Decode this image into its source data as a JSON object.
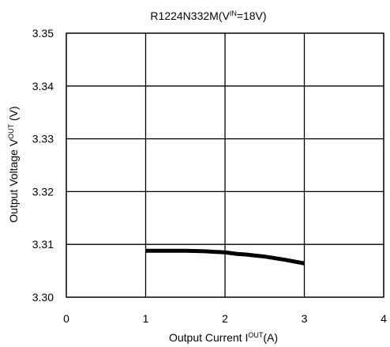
{
  "chart_data": {
    "type": "line",
    "title": {
      "main": "R1224N332M(V",
      "sub": "IN",
      "suffix": "=18V)"
    },
    "xlabel": {
      "main": "Output Current I",
      "sub": "OUT",
      "suffix": "(A)"
    },
    "ylabel": {
      "main": "Output Voltage V",
      "sub": "OUT",
      "suffix": " (V)"
    },
    "xlim": [
      0,
      4
    ],
    "ylim": [
      3.3,
      3.35
    ],
    "x_ticks": [
      0,
      1,
      2,
      3,
      4
    ],
    "y_ticks": [
      3.3,
      3.31,
      3.32,
      3.33,
      3.34,
      3.35
    ],
    "x_tick_labels": [
      "0",
      "1",
      "2",
      "3",
      "4"
    ],
    "y_tick_labels": [
      "3.30",
      "3.31",
      "3.32",
      "3.33",
      "3.34",
      "3.35"
    ],
    "grid": true,
    "series": [
      {
        "x": [
          1.0,
          1.25,
          1.5,
          1.75,
          1.85,
          2.0,
          2.15,
          2.25,
          2.5,
          2.75,
          3.0
        ],
        "y": [
          3.3088,
          3.3088,
          3.3088,
          3.3087,
          3.3086,
          3.3085,
          3.3082,
          3.3081,
          3.3077,
          3.3071,
          3.3064
        ]
      }
    ]
  }
}
